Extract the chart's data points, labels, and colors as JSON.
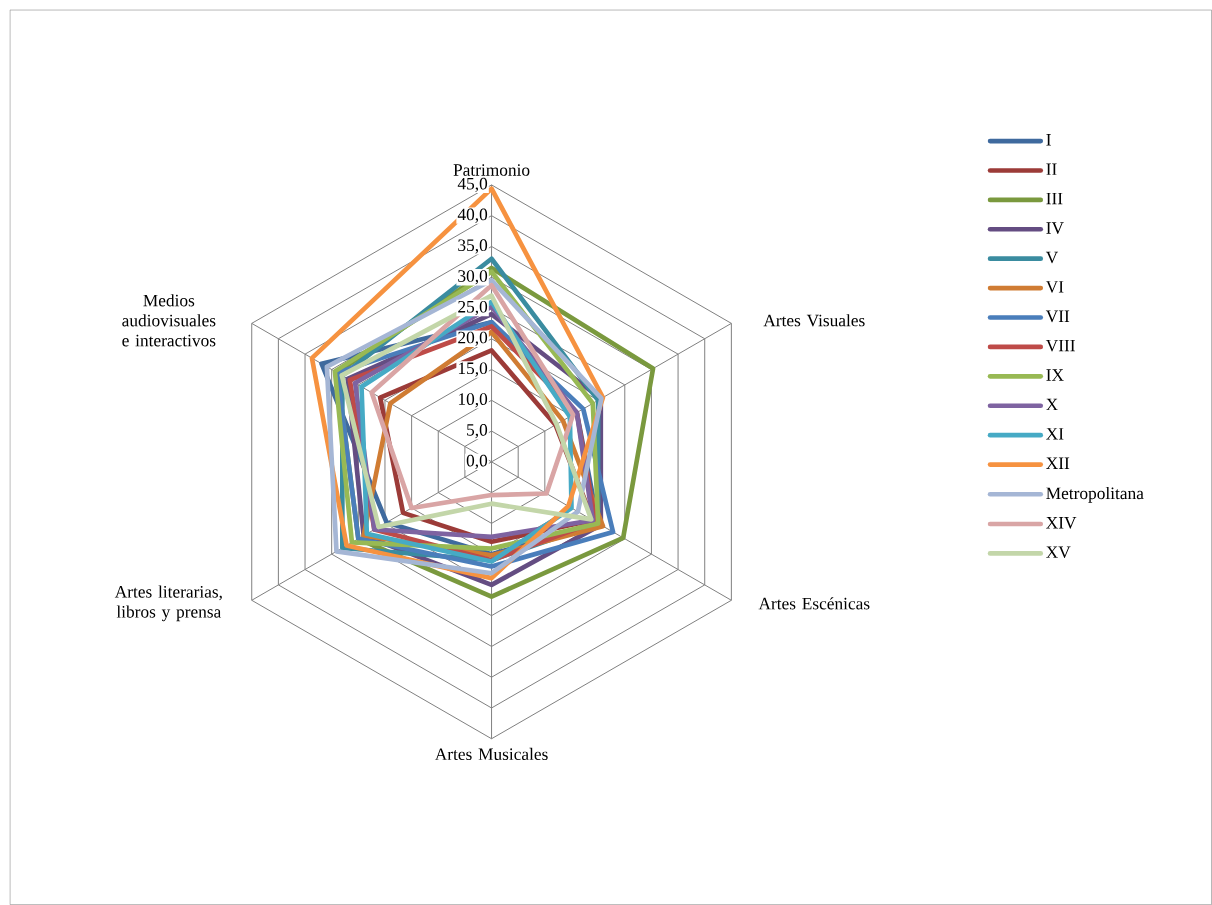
{
  "chart_data": {
    "type": "radar",
    "categories": [
      "Patrimonio",
      "Artes Visuales",
      "Artes Escénicas",
      "Artes Musicales",
      "Artes literarias, libros y prensa",
      "Medios audiovisuales e interactivos"
    ],
    "ylim": [
      0,
      45
    ],
    "yticks": [
      {
        "value": 0,
        "label": "0,0"
      },
      {
        "value": 5,
        "label": "5,0"
      },
      {
        "value": 10,
        "label": "10,0"
      },
      {
        "value": 15,
        "label": "15,0"
      },
      {
        "value": 20,
        "label": "20,0"
      },
      {
        "value": 25,
        "label": "25,0"
      },
      {
        "value": 30,
        "label": "30,0"
      },
      {
        "value": 35,
        "label": "35,0"
      },
      {
        "value": 40,
        "label": "40,0"
      },
      {
        "value": 45,
        "label": "45,0"
      }
    ],
    "grid": true,
    "legend": "right",
    "series": [
      {
        "name": "I",
        "color": "#3f6a9e",
        "values": [
          22.7,
          16,
          20,
          15,
          19.7,
          31.9
        ]
      },
      {
        "name": "II",
        "color": "#9c3b38",
        "values": [
          18.1,
          12,
          19,
          13,
          16.6,
          20.9
        ]
      },
      {
        "name": "III",
        "color": "#7a993e",
        "values": [
          31.5,
          30.3,
          24.7,
          21.9,
          25,
          29
        ]
      },
      {
        "name": "IV",
        "color": "#644d82",
        "values": [
          24,
          20.5,
          20.5,
          20,
          24,
          27
        ]
      },
      {
        "name": "V",
        "color": "#3a8ca0",
        "values": [
          33,
          20,
          20,
          16,
          28,
          28
        ]
      },
      {
        "name": "VI",
        "color": "#d07c33",
        "values": [
          21.1,
          13.4,
          20.9,
          15.2,
          24,
          19
        ]
      },
      {
        "name": "VII",
        "color": "#4a7ebb",
        "values": [
          22.7,
          17.2,
          22.8,
          17,
          25,
          29
        ]
      },
      {
        "name": "VIII",
        "color": "#be4b48",
        "values": [
          22,
          16,
          19.5,
          16,
          22,
          26.6
        ]
      },
      {
        "name": "IX",
        "color": "#98b954",
        "values": [
          30.9,
          19,
          20,
          14.1,
          26.2,
          29.4
        ]
      },
      {
        "name": "X",
        "color": "#7e63a1",
        "values": [
          25.2,
          16,
          19,
          12.2,
          22,
          25.6
        ]
      },
      {
        "name": "XI",
        "color": "#46aac5",
        "values": [
          26,
          14.7,
          15,
          16.2,
          23.4,
          24.4
        ]
      },
      {
        "name": "XII",
        "color": "#f69240",
        "values": [
          44.4,
          20.9,
          14.4,
          18.9,
          27.2,
          33.7
        ]
      },
      {
        "name": "Metropolitana",
        "color": "#a5b6d5",
        "values": [
          29.5,
          20.6,
          16.2,
          18.1,
          29.1,
          30.9
        ]
      },
      {
        "name": "XIV",
        "color": "#d9a5a5",
        "values": [
          28.7,
          15.3,
          10.3,
          5.4,
          15.0,
          22.5
        ]
      },
      {
        "name": "XV",
        "color": "#c3d6a9",
        "values": [
          27.0,
          12.2,
          18.7,
          6.8,
          21.2,
          28.1
        ]
      }
    ]
  }
}
